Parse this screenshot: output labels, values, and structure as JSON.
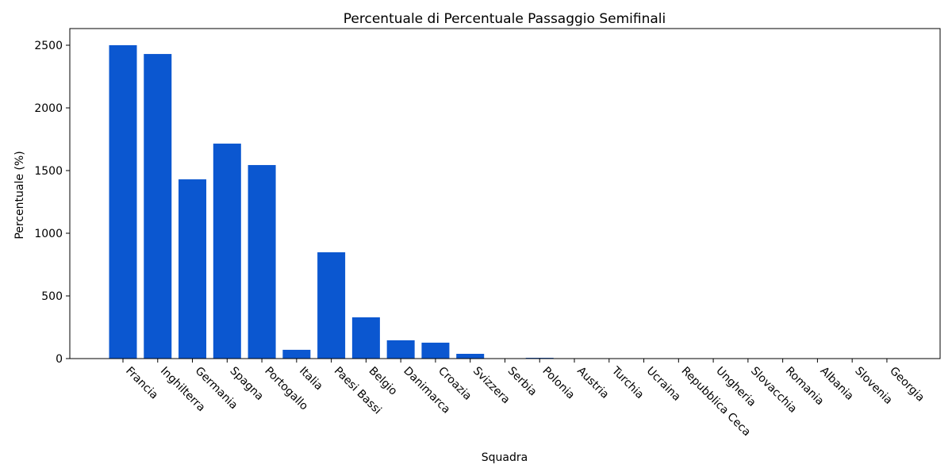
{
  "chart_data": {
    "type": "bar",
    "title": "Percentuale di Percentuale Passaggio Semifinali",
    "xlabel": "Squadra",
    "ylabel": "Percentuale (%)",
    "ylim": [
      0,
      2630
    ],
    "yticks": [
      0,
      500,
      1000,
      1500,
      2000,
      2500
    ],
    "categories": [
      "Francia",
      "Inghilterra",
      "Germania",
      "Spagna",
      "Portogallo",
      "Italia",
      "Paesi Bassi",
      "Belgio",
      "Danimarca",
      "Croazia",
      "Svizzera",
      "Serbia",
      "Polonia",
      "Austria",
      "Turchia",
      "Ucraina",
      "Repubblica Ceca",
      "Ungheria",
      "Slovacchia",
      "Romania",
      "Albania",
      "Slovenia",
      "Georgia"
    ],
    "values": [
      2500,
      2430,
      1430,
      1715,
      1544,
      70,
      848,
      329,
      146,
      127,
      38,
      0,
      6,
      0,
      0,
      0,
      0,
      0,
      0,
      0,
      0,
      0,
      0
    ],
    "color": "#0b57d0",
    "grid": false
  }
}
